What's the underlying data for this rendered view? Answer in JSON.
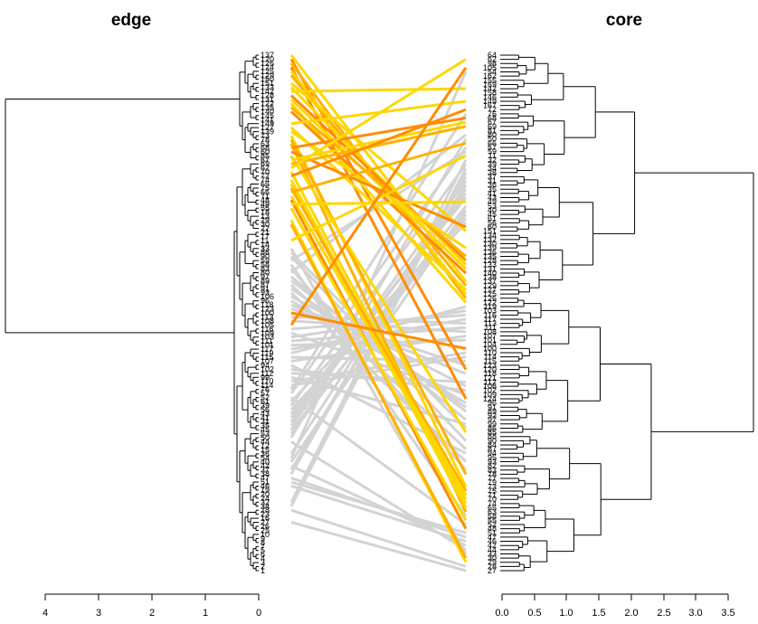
{
  "titles": {
    "left": "edge",
    "right": "core"
  },
  "left_axis": {
    "ticks": [
      "4",
      "3",
      "2",
      "1",
      "0"
    ]
  },
  "right_axis": {
    "ticks": [
      "0.0",
      "0.5",
      "1.0",
      "1.5",
      "2.0",
      "2.5",
      "3.0",
      "3.5"
    ]
  },
  "colors": {
    "grey": "#d3d3d3",
    "gold": "#ffd700",
    "orange": "#ff8c00",
    "amber": "#ffb000"
  },
  "leaves_left": [
    "137",
    "120",
    "126",
    "124",
    "125",
    "129",
    "150",
    "151",
    "133",
    "142",
    "128",
    "131",
    "122",
    "135",
    "140",
    "145",
    "141",
    "149",
    "127",
    "139",
    "73",
    "78",
    "63",
    "68",
    "60",
    "85",
    "67",
    "69",
    "62",
    "70",
    "72",
    "74",
    "65",
    "75",
    "66",
    "71",
    "48",
    "49",
    "55",
    "18",
    "13",
    "29",
    "30",
    "22",
    "21",
    "17",
    "11",
    "14",
    "33",
    "86",
    "90",
    "59",
    "58",
    "83",
    "80",
    "97",
    "89",
    "87",
    "91",
    "93",
    "106",
    "96",
    "118",
    "123",
    "100",
    "113",
    "108",
    "105",
    "116",
    "109",
    "103",
    "111",
    "101",
    "117",
    "119",
    "115",
    "107",
    "94",
    "102",
    "112",
    "99",
    "110",
    "114",
    "76",
    "57",
    "52",
    "61",
    "39",
    "56",
    "43",
    "41",
    "31",
    "35",
    "45",
    "53",
    "50",
    "44",
    "12",
    "15",
    "36",
    "54",
    "40",
    "42",
    "37",
    "38",
    "47",
    "51",
    "46",
    "19",
    "20",
    "24",
    "32",
    "34",
    "28",
    "23",
    "16",
    "27",
    "26",
    "25",
    "10",
    "9",
    "8",
    "7",
    "5",
    "6",
    "4",
    "3",
    "2",
    "1"
  ],
  "leaves_right": [
    "64",
    "62",
    "98",
    "105",
    "54",
    "162",
    "155",
    "169",
    "142",
    "158",
    "146",
    "149",
    "167",
    "72",
    "76",
    "68",
    "67",
    "69",
    "81",
    "80",
    "50",
    "66",
    "57",
    "59",
    "11",
    "32",
    "39",
    "34",
    "38",
    "37",
    "31",
    "36",
    "35",
    "41",
    "43",
    "49",
    "53",
    "40",
    "45",
    "61",
    "56",
    "60",
    "151",
    "134",
    "132",
    "130",
    "139",
    "136",
    "135",
    "128",
    "133",
    "131",
    "140",
    "138",
    "137",
    "129",
    "127",
    "125",
    "126",
    "122",
    "119",
    "103",
    "116",
    "117",
    "113",
    "111",
    "108",
    "107",
    "101",
    "104",
    "100",
    "110",
    "114",
    "115",
    "123",
    "120",
    "118",
    "121",
    "112",
    "106",
    "102",
    "109",
    "124",
    "96",
    "91",
    "89",
    "92",
    "97",
    "99",
    "86",
    "85",
    "88",
    "90",
    "84",
    "87",
    "94",
    "95",
    "93",
    "82",
    "83",
    "78",
    "77",
    "79",
    "73",
    "75",
    "71",
    "70",
    "74",
    "65",
    "63",
    "58",
    "55",
    "52",
    "48",
    "51",
    "47",
    "46",
    "42",
    "44",
    "33",
    "30",
    "29",
    "28",
    "27"
  ]
}
